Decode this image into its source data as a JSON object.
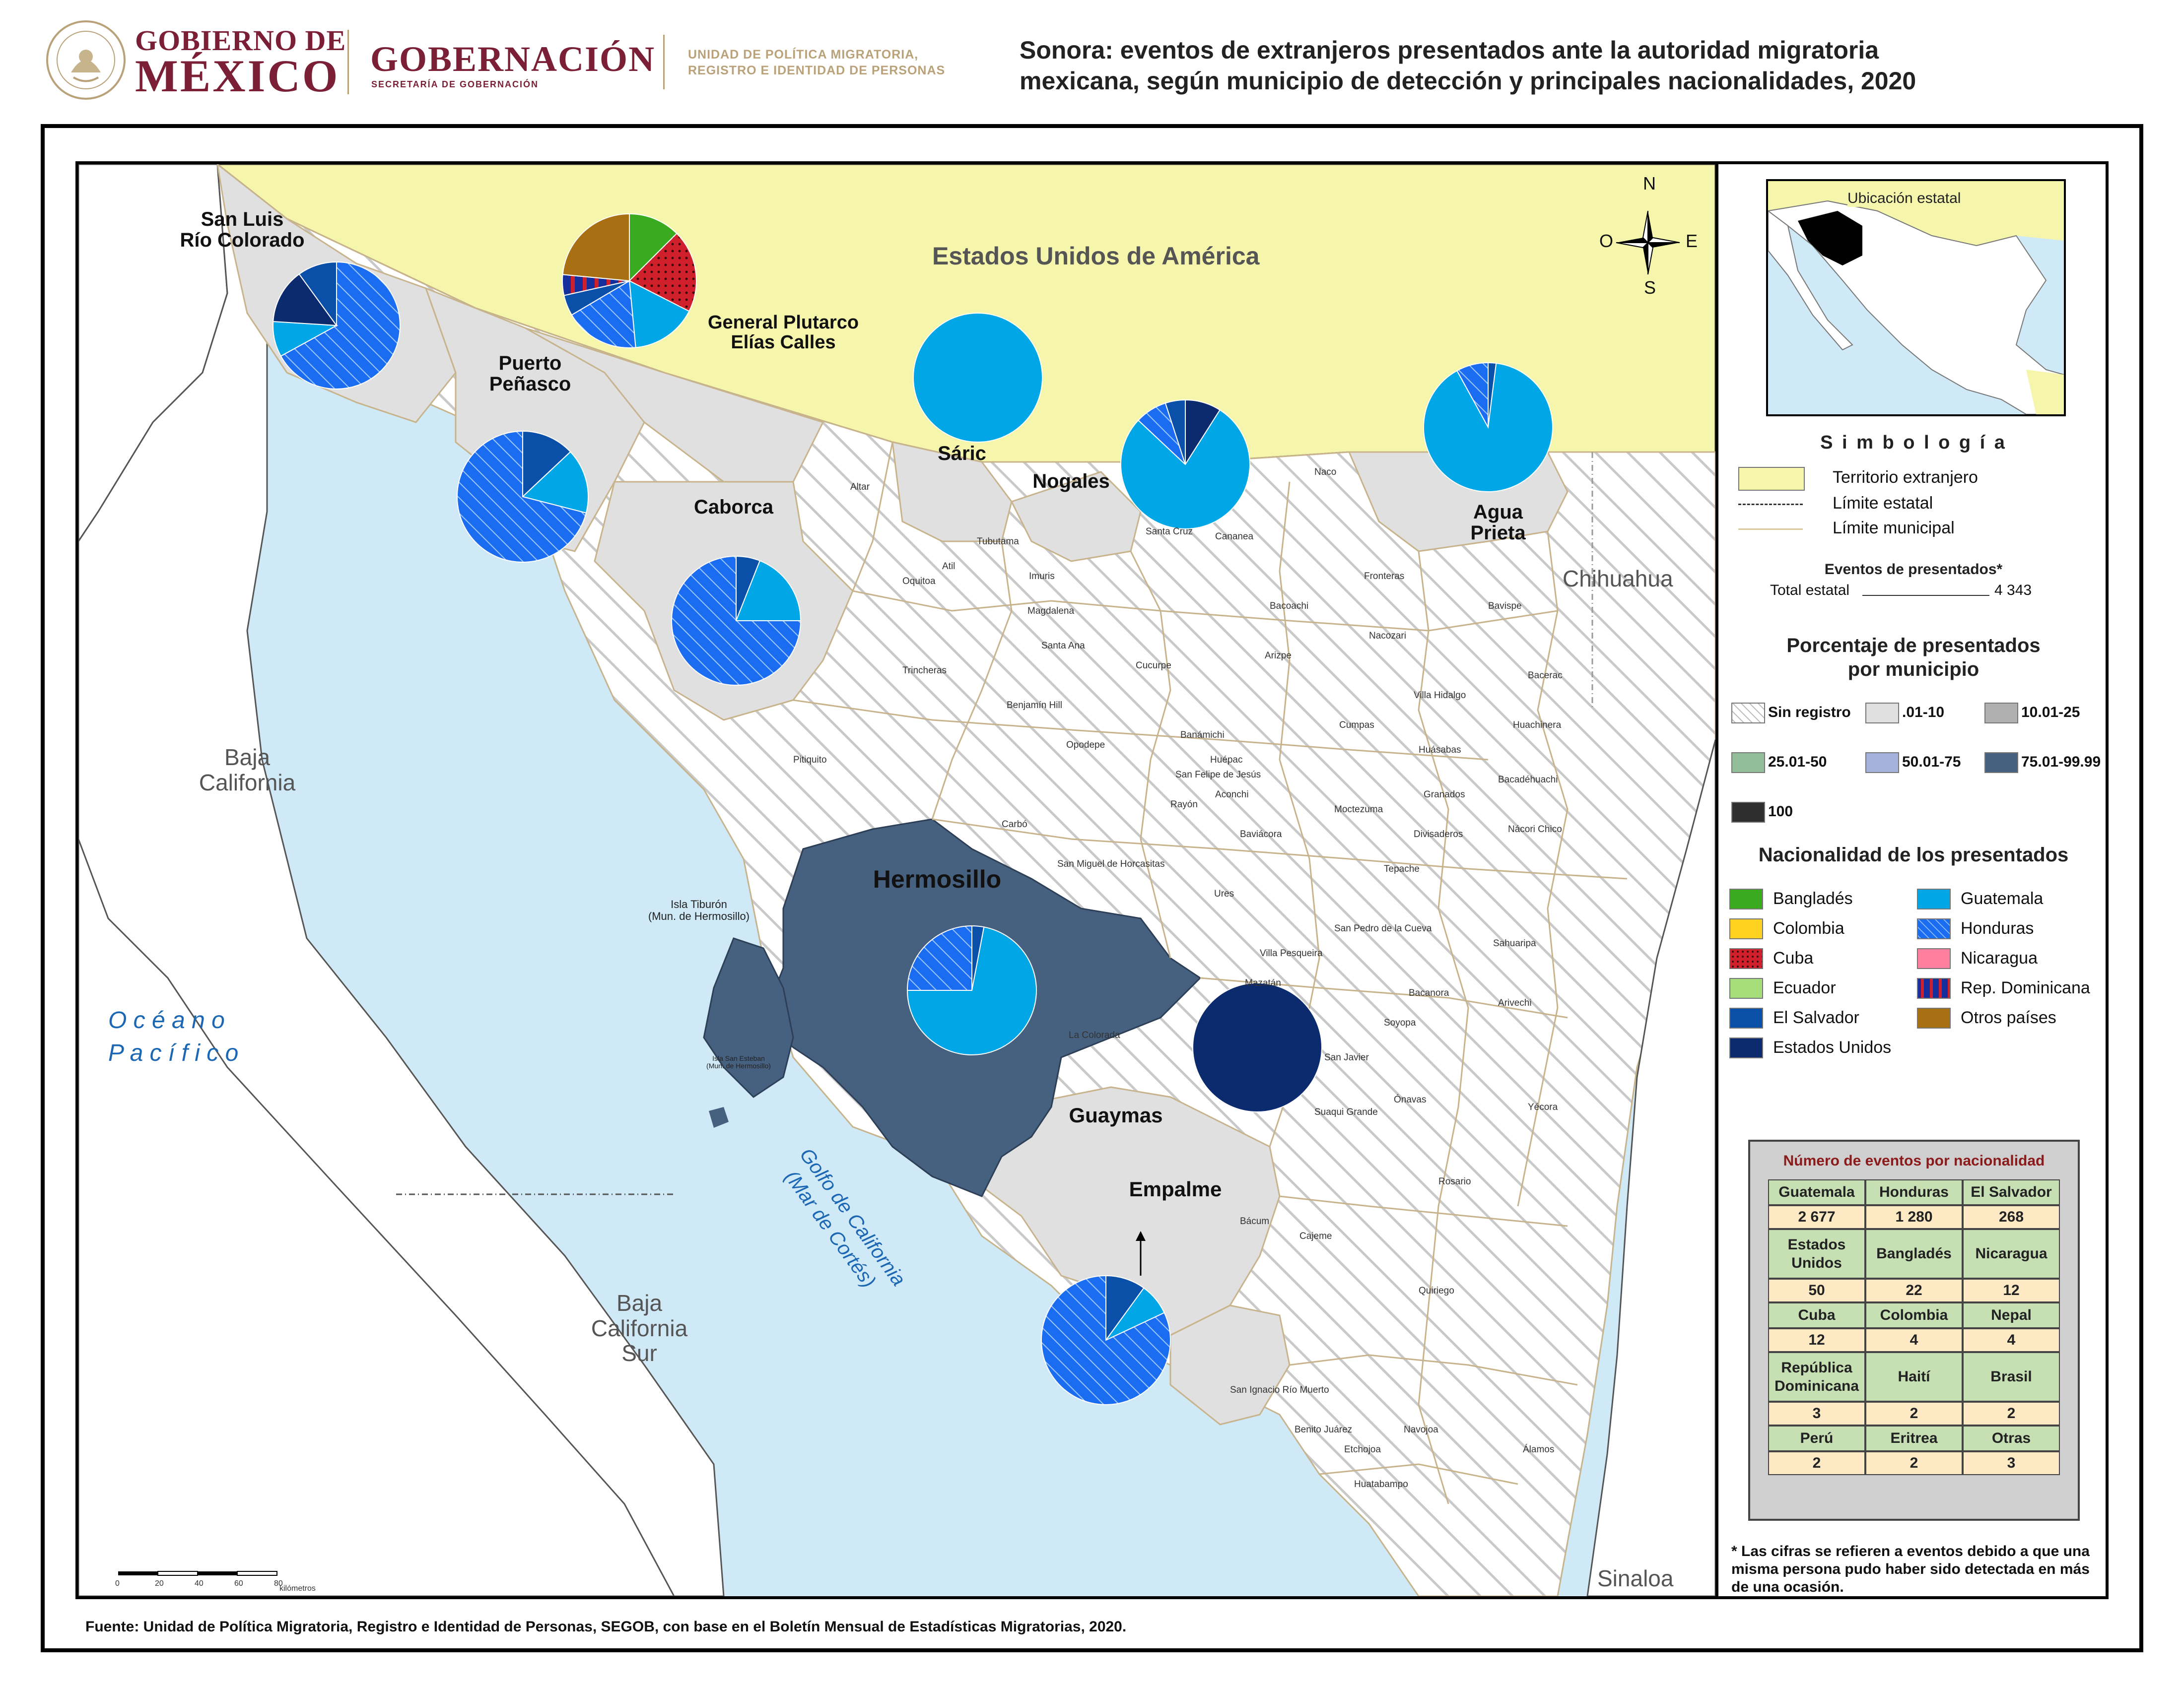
{
  "header": {
    "gob_line1": "GOBIERNO DE",
    "gob_line2": "MÉXICO",
    "gobernacion": "GOBERNACIÓN",
    "secretaria": "SECRETARÍA DE GOBERNACIÓN",
    "unidad_line1": "UNIDAD DE POLÍTICA MIGRATORIA,",
    "unidad_line2": "REGISTRO E IDENTIDAD DE PERSONAS",
    "title_line1": "Sonora: eventos de extranjeros presentados ante la autoridad migratoria",
    "title_line2": "mexicana, según municipio de detección y principales nacionalidades, 2020"
  },
  "colors": {
    "foreign": "#f5f5ac",
    "sea": "#cfe9f6",
    "sin_registro_hatch": "#c9c9c9",
    "low": "#e0e0e0",
    "high": "#46607f",
    "guatemala": "#00a6e6",
    "honduras": "#1a6cf0",
    "el_salvador": "#0a50a9",
    "estados_unidos": "#0c2a6e",
    "bangladesh": "#3aaa1e",
    "cuba": "#d0202b",
    "rep_dominicana": "#142f9c",
    "otros": "#a87012",
    "nicaragua": "#ff7f9f",
    "ecuador": "#a6de7c",
    "colombia": "#ffd21f"
  },
  "map": {
    "usa": "Estados Unidos de América",
    "baja_california": "Baja California",
    "baja_california_sur": "Baja California Sur",
    "chihuahua": "Chihuahua",
    "sinaloa": "Sinaloa",
    "oceano_line1": "O c é a n o",
    "oceano_line2": "P a c í f i c o",
    "golfo_line1": "Golfo de California",
    "golfo_line2": "(Mar de Cortés)",
    "isla_tiburon": "Isla Tiburón\n(Mun. de Hermosillo)",
    "isla_san_esteban": "Isla San Esteban\n(Mun. de Hermosillo)",
    "compass": {
      "n": "N",
      "s": "S",
      "e": "E",
      "o": "O"
    },
    "scale_ticks": [
      "0",
      "20",
      "40",
      "60",
      "80"
    ],
    "scale_unit": "kilómetros",
    "highlighted": {
      "san_luis": "San Luis\nRío Colorado",
      "general_plutarco": "General Plutarco\nElías Calles",
      "puerto_penasco": "Puerto\nPeñasco",
      "caborca": "Caborca",
      "saric": "Sáric",
      "nogales": "Nogales",
      "agua_prieta": "Agua\nPrieta",
      "hermosillo": "Hermosillo",
      "guaymas": "Guaymas",
      "empalme": "Empalme"
    },
    "municipalities": [
      "Altar",
      "Tubutama",
      "Atil",
      "Oquitoa",
      "Imuris",
      "Magdalena",
      "Santa Ana",
      "Trincheras",
      "Benjamín Hill",
      "Pitiquito",
      "Opodepe",
      "Carbó",
      "Santa Cruz",
      "Cananea",
      "Naco",
      "Fronteras",
      "Bacoachi",
      "Arizpe",
      "Cucurpe",
      "Nacozari",
      "Bavispe",
      "Bacerac",
      "Villa Hidalgo",
      "Huachinera",
      "Cumpas",
      "Banámichi",
      "Huépac",
      "San Felipe de Jesús",
      "Aconchi",
      "Rayón",
      "Huásabas",
      "Bacadéhuachi",
      "Granados",
      "Moctezuma",
      "Baviácora",
      "Divisaderos",
      "Nácori Chico",
      "Tepache",
      "San Miguel de Horcasitas",
      "Ures",
      "San Pedro de la Cueva",
      "Sahuaripa",
      "Villa Pesqueira",
      "Mazatán",
      "Bacanora",
      "Arivechi",
      "Soyopa",
      "La Colorada",
      "San Javier",
      "Ónavas",
      "Suaqui Grande",
      "Yécora",
      "Rosario",
      "Bácum",
      "Cajeme",
      "Quiriego",
      "San Ignacio Río Muerto",
      "Benito Juárez",
      "Navojoa",
      "Etchojoa",
      "Álamos",
      "Huatabampo"
    ]
  },
  "pies": [
    {
      "name": "San Luis Río Colorado",
      "slices": [
        {
          "nat": "honduras",
          "pct": 0.67
        },
        {
          "nat": "guatemala",
          "pct": 0.09
        },
        {
          "nat": "estados_unidos",
          "pct": 0.14
        },
        {
          "nat": "el_salvador",
          "pct": 0.1
        }
      ]
    },
    {
      "name": "General Plutarco Elías Calles",
      "slices": [
        {
          "nat": "bangladesh",
          "pct": 0.125
        },
        {
          "nat": "cuba",
          "pct": 0.2
        },
        {
          "nat": "guatemala",
          "pct": 0.16
        },
        {
          "nat": "honduras",
          "pct": 0.18
        },
        {
          "nat": "el_salvador",
          "pct": 0.05
        },
        {
          "nat": "rep_dominicana",
          "pct": 0.05
        },
        {
          "nat": "otros",
          "pct": 0.235
        }
      ]
    },
    {
      "name": "Puerto Peñasco",
      "slices": [
        {
          "nat": "el_salvador",
          "pct": 0.13
        },
        {
          "nat": "guatemala",
          "pct": 0.16
        },
        {
          "nat": "honduras",
          "pct": 0.71
        }
      ]
    },
    {
      "name": "Caborca",
      "slices": [
        {
          "nat": "el_salvador",
          "pct": 0.06
        },
        {
          "nat": "guatemala",
          "pct": 0.19
        },
        {
          "nat": "honduras",
          "pct": 0.75
        }
      ]
    },
    {
      "name": "Sáric",
      "slices": [
        {
          "nat": "guatemala",
          "pct": 1.0
        }
      ]
    },
    {
      "name": "Nogales",
      "slices": [
        {
          "nat": "estados_unidos",
          "pct": 0.09
        },
        {
          "nat": "guatemala",
          "pct": 0.78
        },
        {
          "nat": "honduras",
          "pct": 0.08
        },
        {
          "nat": "el_salvador",
          "pct": 0.05
        }
      ]
    },
    {
      "name": "Agua Prieta",
      "slices": [
        {
          "nat": "el_salvador",
          "pct": 0.02
        },
        {
          "nat": "guatemala",
          "pct": 0.9
        },
        {
          "nat": "honduras",
          "pct": 0.08
        }
      ]
    },
    {
      "name": "Hermosillo",
      "slices": [
        {
          "nat": "el_salvador",
          "pct": 0.03
        },
        {
          "nat": "guatemala",
          "pct": 0.72
        },
        {
          "nat": "honduras",
          "pct": 0.25
        }
      ]
    },
    {
      "name": "Guaymas",
      "slices": [
        {
          "nat": "estados_unidos",
          "pct": 1.0
        }
      ]
    },
    {
      "name": "Empalme",
      "slices": [
        {
          "nat": "el_salvador",
          "pct": 0.1
        },
        {
          "nat": "guatemala",
          "pct": 0.08
        },
        {
          "nat": "honduras",
          "pct": 0.82
        }
      ]
    }
  ],
  "legend": {
    "inset_title": "Ubicación estatal",
    "simbologia": "S i m b o l o g í a",
    "territorio": "Territorio extranjero",
    "limite_estatal": "Límite estatal",
    "limite_municipal": "Límite municipal",
    "eventos_title": "Eventos de presentados*",
    "total_label": "Total estatal",
    "total_value": "4 343",
    "porcentaje_title_1": "Porcentaje de presentados",
    "porcentaje_title_2": "por municipio",
    "pct_classes": [
      "Sin registro",
      ".01-10",
      "10.01-25",
      "25.01-50",
      "50.01-75",
      "75.01-99.99",
      "100"
    ],
    "nacionalidad_title": "Nacionalidad de los presentados",
    "nat_left": [
      "Bangladés",
      "Colombia",
      "Cuba",
      "Ecuador",
      "El Salvador",
      "Estados Unidos"
    ],
    "nat_right": [
      "Guatemala",
      "Honduras",
      "Nicaragua",
      "Rep. Dominicana",
      "Otros países"
    ],
    "table_title": "Número de eventos por nacionalidad",
    "table_rows": [
      {
        "names": [
          "Guatemala",
          "Honduras",
          "El Salvador"
        ],
        "values": [
          "2 677",
          "1 280",
          "268"
        ]
      },
      {
        "names": [
          "Estados Unidos",
          "Bangladés",
          "Nicaragua"
        ],
        "values": [
          "50",
          "22",
          "12"
        ]
      },
      {
        "names": [
          "Cuba",
          "Colombia",
          "Nepal"
        ],
        "values": [
          "12",
          "4",
          "4"
        ]
      },
      {
        "names": [
          "República Dominicana",
          "Haití",
          "Brasil"
        ],
        "values": [
          "3",
          "2",
          "2"
        ]
      },
      {
        "names": [
          "Perú",
          "Eritrea",
          "Otras"
        ],
        "values": [
          "2",
          "2",
          "3"
        ]
      }
    ],
    "footnote": "* Las cifras se refieren a eventos debido a que una misma persona pudo haber sido detectada en más de una ocasión."
  },
  "fuente": "Fuente: Unidad de Política Migratoria, Registro e Identidad de Personas, SEGOB, con base en el Boletín Mensual de Estadísticas Migratorias, 2020."
}
